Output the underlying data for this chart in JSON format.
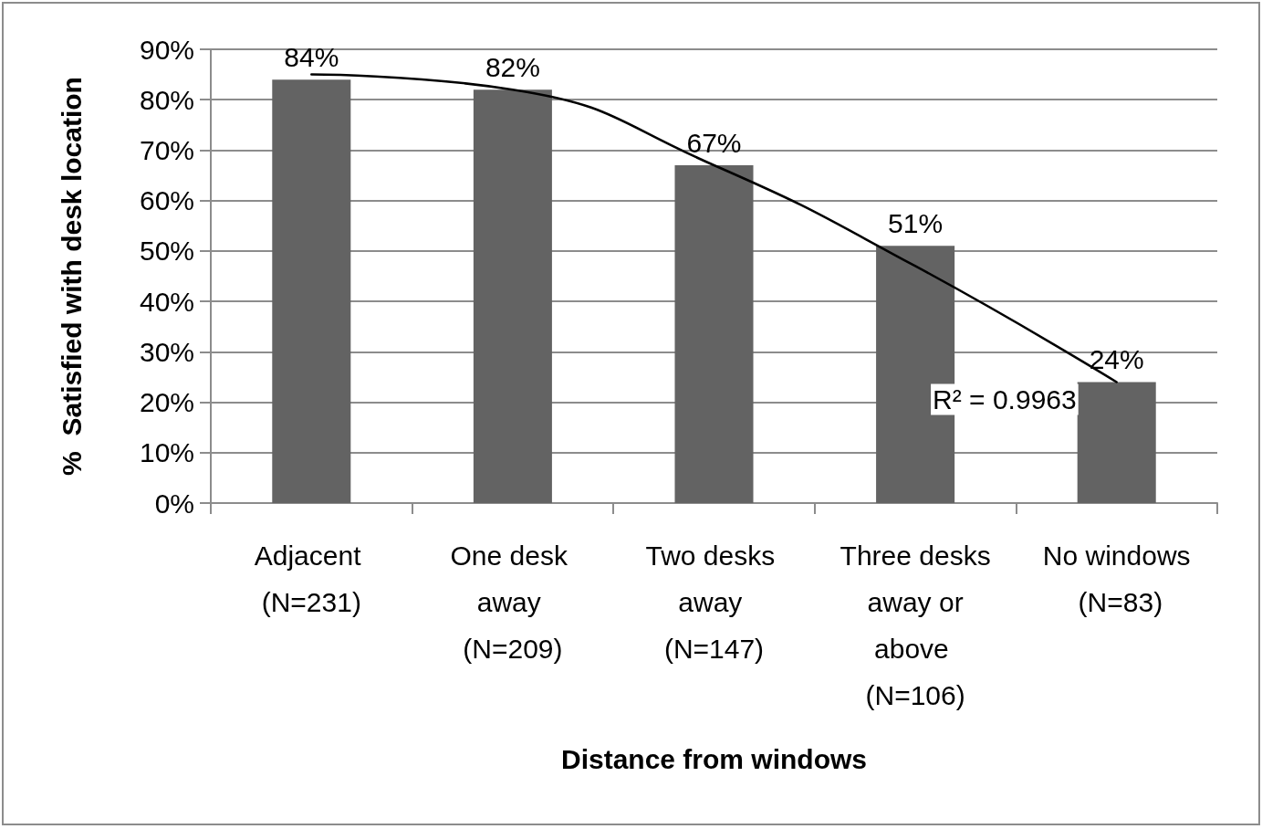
{
  "chart_data": {
    "type": "bar",
    "xlabel": "Distance from windows",
    "ylabel": "%  Satisfied with desk location",
    "categories": [
      "Adjacent (N=231)",
      "One desk away (N=209)",
      "Two desks away (N=147)",
      "Three desks away or above (N=106)",
      "No windows (N=83)"
    ],
    "series": [
      {
        "color": "#636363",
        "values": [
          84,
          82,
          67,
          51,
          24
        ],
        "value_labels": [
          "84%",
          "82%",
          "67%",
          "51%",
          "24%"
        ]
      },
      {
        "type": "line",
        "color": "#000000",
        "x": [
          "Adjacent (N=231)",
          "One desk away (N=209)",
          "Two desks away (N=147)",
          "Three desks away or above (N=106)",
          "No windows (N=83)"
        ],
        "values": [
          85,
          82,
          67,
          47,
          24
        ]
      }
    ],
    "ylim": [
      0,
      90
    ],
    "yticks": [
      {
        "value": 0,
        "label": "0%"
      },
      {
        "value": 10,
        "label": "10%"
      },
      {
        "value": 20,
        "label": "20%"
      },
      {
        "value": 30,
        "label": "30%"
      },
      {
        "value": 40,
        "label": "40%"
      },
      {
        "value": 50,
        "label": "50%"
      },
      {
        "value": 60,
        "label": "60%"
      },
      {
        "value": 70,
        "label": "70%"
      },
      {
        "value": 80,
        "label": "80%"
      },
      {
        "value": 90,
        "label": "90%"
      }
    ],
    "annotations": [
      "R² = 0.9963"
    ],
    "grid": "y",
    "marker": "none",
    "line_style": "solid"
  }
}
